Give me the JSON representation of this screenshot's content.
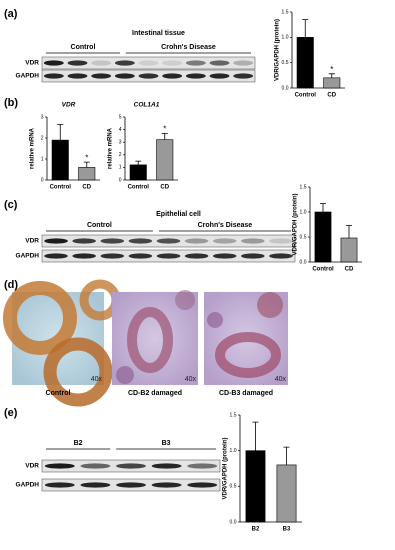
{
  "panels": [
    {
      "label": "(a)",
      "blot": {
        "title": "Intestinal tissue",
        "groups": [
          "Control",
          "Crohn's Disease"
        ],
        "rows": [
          "VDR",
          "GAPDH"
        ]
      },
      "charts": [
        {
          "type": "bar",
          "ylabel": "VDR/GAPDH (protein)",
          "categories": [
            "Control",
            "CD"
          ],
          "values": [
            1.0,
            0.2
          ],
          "errors": [
            0.35,
            0.08
          ],
          "colors": [
            "#000000",
            "#999999"
          ],
          "ylim": [
            0,
            1.5
          ],
          "yticks": [
            {
              "value": 0,
              "label": "0.0"
            },
            {
              "value": 0.5,
              "label": "0.5"
            },
            {
              "value": 1,
              "label": "1.0"
            },
            {
              "value": 1.5,
              "label": "1.5"
            }
          ],
          "annotations": [
            {
              "category": "CD",
              "text": "*"
            }
          ]
        }
      ]
    },
    {
      "label": "(b)",
      "charts": [
        {
          "type": "bar",
          "title": "VDR",
          "ylabel": "relative mRNA",
          "categories": [
            "Control",
            "CD"
          ],
          "values": [
            1.9,
            0.6
          ],
          "errors": [
            0.75,
            0.25
          ],
          "colors": [
            "#000000",
            "#999999"
          ],
          "ylim": [
            0,
            3
          ],
          "yticks": [
            0,
            1,
            2,
            3
          ],
          "annotations": [
            {
              "category": "CD",
              "text": "*"
            }
          ]
        },
        {
          "type": "bar",
          "title": "COL1A1",
          "ylabel": "relative mRNA",
          "categories": [
            "Control",
            "CD"
          ],
          "values": [
            1.2,
            3.2
          ],
          "errors": [
            0.3,
            0.5
          ],
          "colors": [
            "#000000",
            "#999999"
          ],
          "ylim": [
            0,
            5
          ],
          "yticks": [
            0,
            1,
            2,
            3,
            4,
            5
          ],
          "annotations": [
            {
              "category": "CD",
              "text": "*"
            }
          ]
        }
      ]
    },
    {
      "label": "(c)",
      "blot": {
        "title": "Epithelial cell",
        "groups": [
          "Control",
          "Crohn's Disease"
        ],
        "rows": [
          "VDR",
          "GAPDH"
        ]
      },
      "charts": [
        {
          "type": "bar",
          "ylabel": "VDR/GAPDH (protein)",
          "categories": [
            "Control",
            "CD"
          ],
          "values": [
            1.0,
            0.48
          ],
          "errors": [
            0.17,
            0.25
          ],
          "colors": [
            "#000000",
            "#999999"
          ],
          "ylim": [
            0,
            1.5
          ],
          "yticks": [
            {
              "value": 0,
              "label": "0.0"
            },
            {
              "value": 0.5,
              "label": "0.5"
            },
            {
              "value": 1,
              "label": "1.0"
            },
            {
              "value": 1.5,
              "label": "1.5"
            }
          ]
        }
      ]
    },
    {
      "label": "(d)",
      "images": [
        {
          "caption": "Control",
          "magnification": "40x"
        },
        {
          "caption": "CD-B2 damaged",
          "magnification": "40x"
        },
        {
          "caption": "CD-B3 damaged",
          "magnification": "40x"
        }
      ]
    },
    {
      "label": "(e)",
      "blot": {
        "groups": [
          "B2",
          "B3"
        ],
        "rows": [
          "VDR",
          "GAPDH"
        ]
      },
      "charts": [
        {
          "type": "bar",
          "ylabel": "VDR/GAPDH (protein)",
          "categories": [
            "B2",
            "B3"
          ],
          "values": [
            1.0,
            0.8
          ],
          "errors": [
            0.4,
            0.25
          ],
          "colors": [
            "#000000",
            "#999999"
          ],
          "ylim": [
            0,
            1.5
          ],
          "yticks": [
            {
              "value": 0,
              "label": "0.0"
            },
            {
              "value": 0.5,
              "label": "0.5"
            },
            {
              "value": 1,
              "label": "1.0"
            },
            {
              "value": 1.5,
              "label": "1.5"
            }
          ]
        }
      ]
    }
  ]
}
